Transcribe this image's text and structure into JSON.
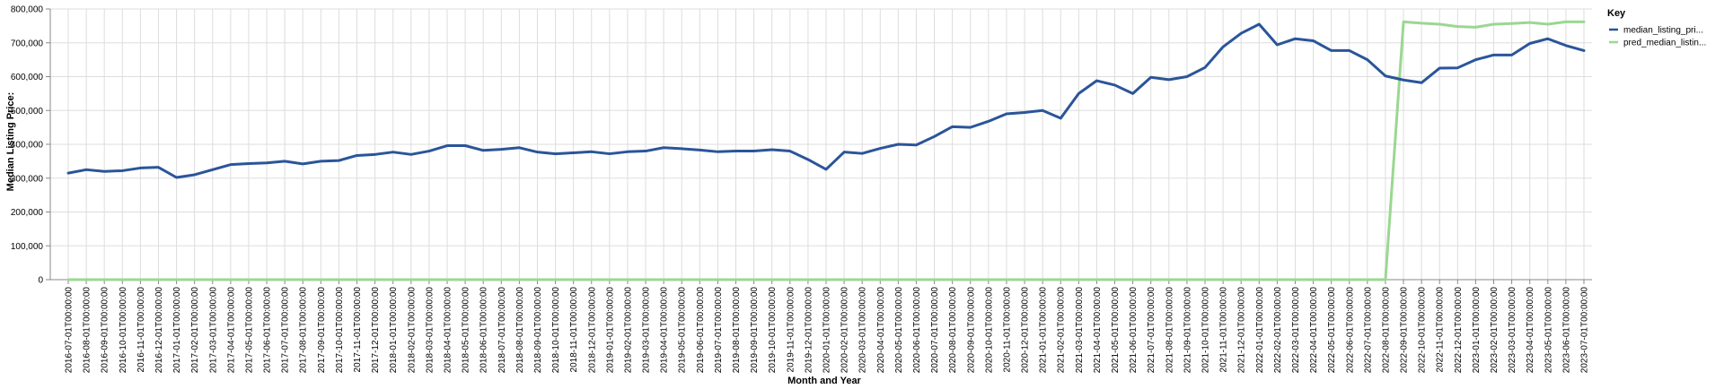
{
  "chart_data": {
    "type": "line",
    "xlabel": "Month and Year",
    "ylabel": "Median Listing Price:",
    "ylim": [
      0,
      800000
    ],
    "yticks": [
      "0",
      "100,000",
      "200,000",
      "300,000",
      "400,000",
      "500,000",
      "600,000",
      "700,000",
      "800,000"
    ],
    "ytick_values": [
      0,
      100000,
      200000,
      300000,
      400000,
      500000,
      600000,
      700000,
      800000
    ],
    "grid": true,
    "legend": {
      "title": "Key",
      "placement": "right",
      "items": [
        "median_listing_pri...",
        "pred_median_listin..."
      ]
    },
    "x": [
      "2016-07-01T00:00:00",
      "2016-08-01T00:00:00",
      "2016-09-01T00:00:00",
      "2016-10-01T00:00:00",
      "2016-11-01T00:00:00",
      "2016-12-01T00:00:00",
      "2017-01-01T00:00:00",
      "2017-02-01T00:00:00",
      "2017-03-01T00:00:00",
      "2017-04-01T00:00:00",
      "2017-05-01T00:00:00",
      "2017-06-01T00:00:00",
      "2017-07-01T00:00:00",
      "2017-08-01T00:00:00",
      "2017-09-01T00:00:00",
      "2017-10-01T00:00:00",
      "2017-11-01T00:00:00",
      "2017-12-01T00:00:00",
      "2018-01-01T00:00:00",
      "2018-02-01T00:00:00",
      "2018-03-01T00:00:00",
      "2018-04-01T00:00:00",
      "2018-05-01T00:00:00",
      "2018-06-01T00:00:00",
      "2018-07-01T00:00:00",
      "2018-08-01T00:00:00",
      "2018-09-01T00:00:00",
      "2018-10-01T00:00:00",
      "2018-11-01T00:00:00",
      "2018-12-01T00:00:00",
      "2019-01-01T00:00:00",
      "2019-02-01T00:00:00",
      "2019-03-01T00:00:00",
      "2019-04-01T00:00:00",
      "2019-05-01T00:00:00",
      "2019-06-01T00:00:00",
      "2019-07-01T00:00:00",
      "2019-08-01T00:00:00",
      "2019-09-01T00:00:00",
      "2019-10-01T00:00:00",
      "2019-11-01T00:00:00",
      "2019-12-01T00:00:00",
      "2020-01-01T00:00:00",
      "2020-02-01T00:00:00",
      "2020-03-01T00:00:00",
      "2020-04-01T00:00:00",
      "2020-05-01T00:00:00",
      "2020-06-01T00:00:00",
      "2020-07-01T00:00:00",
      "2020-08-01T00:00:00",
      "2020-09-01T00:00:00",
      "2020-10-01T00:00:00",
      "2020-11-01T00:00:00",
      "2020-12-01T00:00:00",
      "2021-01-01T00:00:00",
      "2021-02-01T00:00:00",
      "2021-03-01T00:00:00",
      "2021-04-01T00:00:00",
      "2021-05-01T00:00:00",
      "2021-06-01T00:00:00",
      "2021-07-01T00:00:00",
      "2021-08-01T00:00:00",
      "2021-09-01T00:00:00",
      "2021-10-01T00:00:00",
      "2021-11-01T00:00:00",
      "2021-12-01T00:00:00",
      "2022-01-01T00:00:00",
      "2022-02-01T00:00:00",
      "2022-03-01T00:00:00",
      "2022-04-01T00:00:00",
      "2022-05-01T00:00:00",
      "2022-06-01T00:00:00",
      "2022-07-01T00:00:00",
      "2022-08-01T00:00:00",
      "2022-09-01T00:00:00",
      "2022-10-01T00:00:00",
      "2022-11-01T00:00:00",
      "2022-12-01T00:00:00",
      "2023-01-01T00:00:00",
      "2023-02-01T00:00:00",
      "2023-03-01T00:00:00",
      "2023-04-01T00:00:00",
      "2023-05-01T00:00:00",
      "2023-06-01T00:00:00",
      "2023-07-01T00:00:00"
    ],
    "series": [
      {
        "name": "median_listing_pri...",
        "color": "#2a5599",
        "values": [
          315000,
          325000,
          320000,
          322000,
          330000,
          332000,
          302000,
          310000,
          325000,
          340000,
          343000,
          345000,
          350000,
          342000,
          350000,
          352000,
          367000,
          370000,
          377000,
          370000,
          380000,
          396000,
          396000,
          382000,
          385000,
          390000,
          377000,
          372000,
          375000,
          378000,
          372000,
          378000,
          380000,
          390000,
          387000,
          383000,
          378000,
          380000,
          380000,
          384000,
          380000,
          355000,
          326000,
          377000,
          373000,
          388000,
          400000,
          398000,
          423000,
          452000,
          450000,
          468000,
          490000,
          494000,
          500000,
          477000,
          550000,
          588000,
          575000,
          550000,
          598000,
          591000,
          600000,
          627000,
          688000,
          728000,
          755000,
          694000,
          712000,
          706000,
          677000,
          677000,
          650000,
          602000,
          590000,
          582000,
          625000,
          626000,
          650000,
          664000,
          664000,
          698000,
          712000,
          692000,
          677000
        ]
      },
      {
        "name": "pred_median_listin...",
        "color": "#9bd792",
        "values": [
          0,
          0,
          0,
          0,
          0,
          0,
          0,
          0,
          0,
          0,
          0,
          0,
          0,
          0,
          0,
          0,
          0,
          0,
          0,
          0,
          0,
          0,
          0,
          0,
          0,
          0,
          0,
          0,
          0,
          0,
          0,
          0,
          0,
          0,
          0,
          0,
          0,
          0,
          0,
          0,
          0,
          0,
          0,
          0,
          0,
          0,
          0,
          0,
          0,
          0,
          0,
          0,
          0,
          0,
          0,
          0,
          0,
          0,
          0,
          0,
          0,
          0,
          0,
          0,
          0,
          0,
          0,
          0,
          0,
          0,
          0,
          0,
          0,
          0,
          762000,
          758000,
          755000,
          748000,
          746000,
          755000,
          757000,
          760000,
          755000,
          762000,
          762000
        ]
      }
    ]
  }
}
